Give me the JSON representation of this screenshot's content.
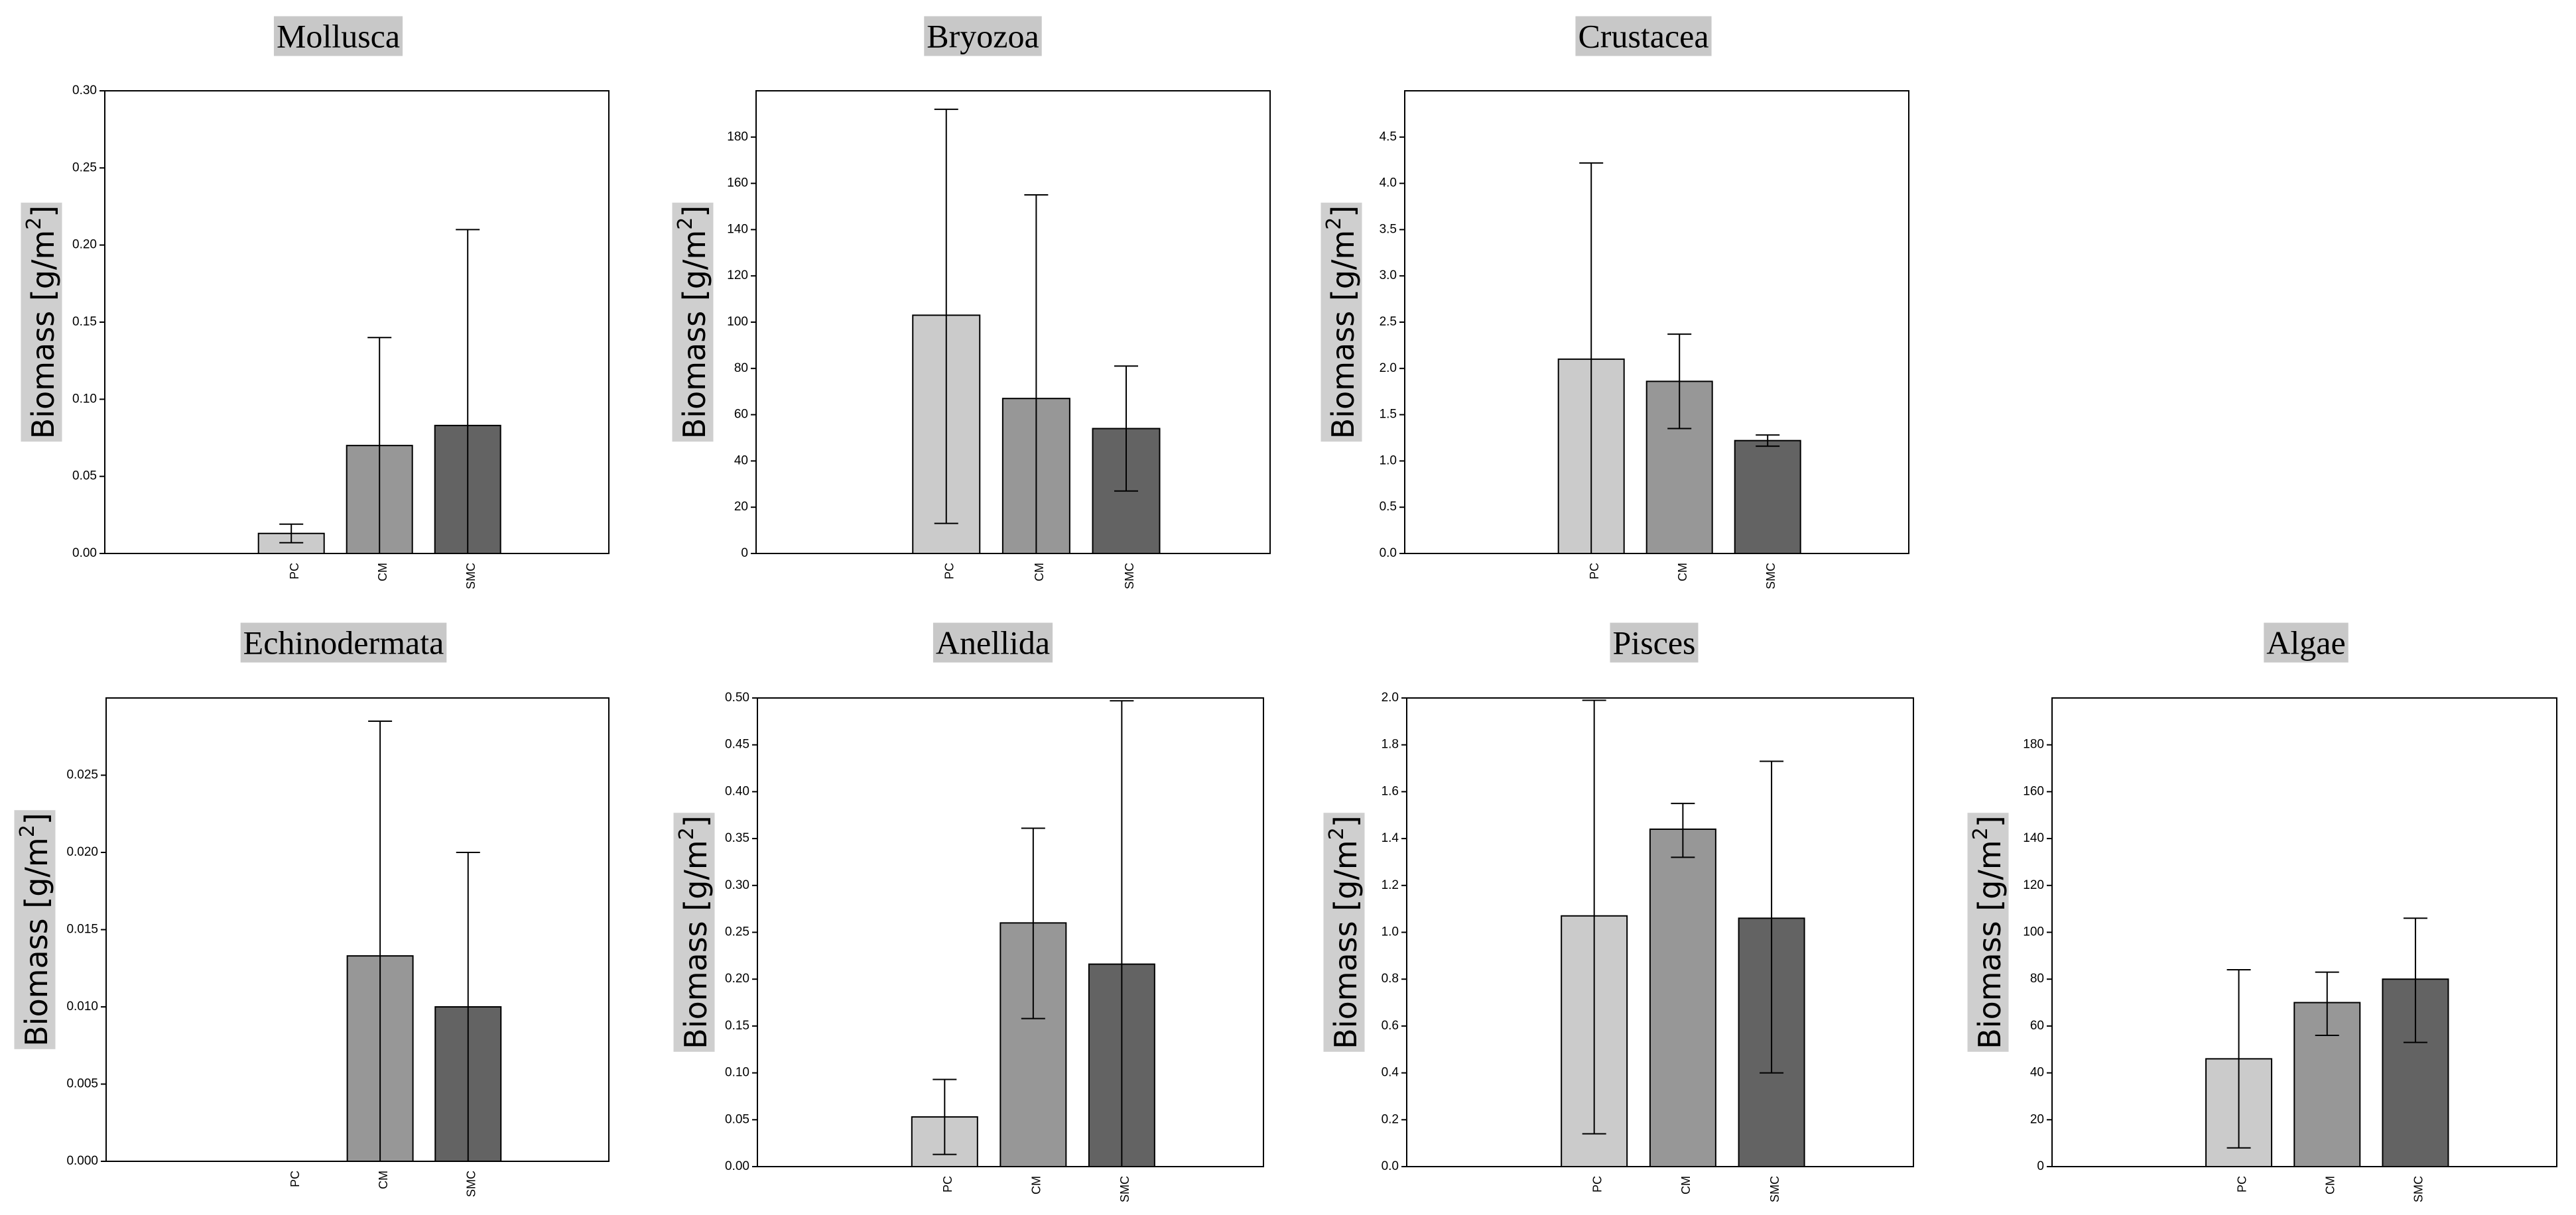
{
  "colors": {
    "background": "#ffffff",
    "title_bg": "#c8c8c8",
    "ylabel_bg": "#cfcfcf",
    "axis": "#000000",
    "error_bar": "#000000",
    "bar_fills": [
      "#cbcbcb",
      "#979797",
      "#636363"
    ]
  },
  "chart_data": [
    {
      "type": "bar",
      "title": "Mollusca",
      "categories": [
        "PC",
        "CM",
        "SMC"
      ],
      "values": [
        0.013,
        0.07,
        0.083
      ],
      "errors": [
        [
          0.007,
          0.019
        ],
        [
          0.0,
          0.14
        ],
        [
          0.0,
          0.21
        ]
      ],
      "ylabel": "Biomass [g/m",
      "ylabel_sup": "2",
      "ylabel_end": "]",
      "ylim": [
        0,
        0.3
      ],
      "yticks": [
        0,
        0.05,
        0.1,
        0.15,
        0.2,
        0.25,
        0.3
      ],
      "ytick_labels": [
        "0.00",
        "0.05",
        "0.10",
        "0.15",
        "0.20",
        "0.25",
        "0.30"
      ],
      "grid": false
    },
    {
      "type": "bar",
      "title": "Bryozoa",
      "categories": [
        "PC",
        "CM",
        "SMC"
      ],
      "values": [
        103,
        67,
        54
      ],
      "errors": [
        [
          13,
          192
        ],
        [
          0,
          155
        ],
        [
          27,
          81
        ]
      ],
      "ylabel": "Biomass [g/m",
      "ylabel_sup": "2",
      "ylabel_end": "]",
      "ylim": [
        0,
        200
      ],
      "yticks": [
        0,
        20,
        40,
        60,
        80,
        100,
        120,
        140,
        160,
        180
      ],
      "ytick_labels": [
        "0",
        "20",
        "40",
        "60",
        "80",
        "100",
        "120",
        "140",
        "160",
        "180"
      ],
      "grid": false
    },
    {
      "type": "bar",
      "title": "Crustacea",
      "categories": [
        "PC",
        "CM",
        "SMC"
      ],
      "values": [
        2.1,
        1.86,
        1.22
      ],
      "errors": [
        [
          0.0,
          4.22
        ],
        [
          1.35,
          2.37
        ],
        [
          1.16,
          1.28
        ]
      ],
      "ylabel": "Biomass [g/m",
      "ylabel_sup": "2",
      "ylabel_end": "]",
      "ylim": [
        0,
        5
      ],
      "yticks": [
        0,
        0.5,
        1,
        1.5,
        2,
        2.5,
        3,
        3.5,
        4,
        4.5
      ],
      "ytick_labels": [
        "0.0",
        "0.5",
        "1.0",
        "1.5",
        "2.0",
        "2.5",
        "3.0",
        "3.5",
        "4.0",
        "4.5"
      ],
      "grid": false
    },
    {
      "type": "bar",
      "title": "Echinodermata",
      "categories": [
        "PC",
        "CM",
        "SMC"
      ],
      "values": [
        0,
        0.0133,
        0.01
      ],
      "errors": [
        [
          0,
          0
        ],
        [
          0,
          0.0285
        ],
        [
          0,
          0.02
        ]
      ],
      "ylabel": "Biomass [g/m",
      "ylabel_sup": "2",
      "ylabel_end": "]",
      "ylim": [
        0,
        0.03
      ],
      "yticks": [
        0,
        0.005,
        0.01,
        0.015,
        0.02,
        0.025
      ],
      "ytick_labels": [
        "0.000",
        "0.005",
        "0.010",
        "0.015",
        "0.020",
        "0.025"
      ],
      "grid": false
    },
    {
      "type": "bar",
      "title": "Anellida",
      "categories": [
        "PC",
        "CM",
        "SMC"
      ],
      "values": [
        0.053,
        0.26,
        0.216
      ],
      "errors": [
        [
          0.013,
          0.093
        ],
        [
          0.158,
          0.361
        ],
        [
          0.0,
          0.497
        ]
      ],
      "ylabel": "Biomass [g/m",
      "ylabel_sup": "2",
      "ylabel_end": "]",
      "ylim": [
        0,
        0.5
      ],
      "yticks": [
        0,
        0.05,
        0.1,
        0.15,
        0.2,
        0.25,
        0.3,
        0.35,
        0.4,
        0.45,
        0.5
      ],
      "ytick_labels": [
        "0.00",
        "0.05",
        "0.10",
        "0.15",
        "0.20",
        "0.25",
        "0.30",
        "0.35",
        "0.40",
        "0.45",
        "0.50"
      ],
      "grid": false
    },
    {
      "type": "bar",
      "title": "Pisces",
      "categories": [
        "PC",
        "CM",
        "SMC"
      ],
      "values": [
        1.07,
        1.44,
        1.06
      ],
      "errors": [
        [
          0.14,
          1.99
        ],
        [
          1.32,
          1.55
        ],
        [
          0.4,
          1.73
        ]
      ],
      "ylabel": "Biomass [g/m",
      "ylabel_sup": "2",
      "ylabel_end": "]",
      "ylim": [
        0,
        2
      ],
      "yticks": [
        0,
        0.2,
        0.4,
        0.6,
        0.8,
        1,
        1.2,
        1.4,
        1.6,
        1.8,
        2
      ],
      "ytick_labels": [
        "0.0",
        "0.2",
        "0.4",
        "0.6",
        "0.8",
        "1.0",
        "1.2",
        "1.4",
        "1.6",
        "1.8",
        "2.0"
      ],
      "grid": false
    },
    {
      "type": "bar",
      "title": "Algae",
      "categories": [
        "PC",
        "CM",
        "SMC"
      ],
      "values": [
        46,
        70,
        80
      ],
      "errors": [
        [
          8,
          84
        ],
        [
          56,
          83
        ],
        [
          53,
          106
        ]
      ],
      "ylabel": "Biomass [g/m",
      "ylabel_sup": "2",
      "ylabel_end": "]",
      "ylim": [
        0,
        200
      ],
      "yticks": [
        0,
        20,
        40,
        60,
        80,
        100,
        120,
        140,
        160,
        180
      ],
      "ytick_labels": [
        "0",
        "20",
        "40",
        "60",
        "80",
        "100",
        "120",
        "140",
        "160",
        "180"
      ],
      "grid": false
    }
  ]
}
